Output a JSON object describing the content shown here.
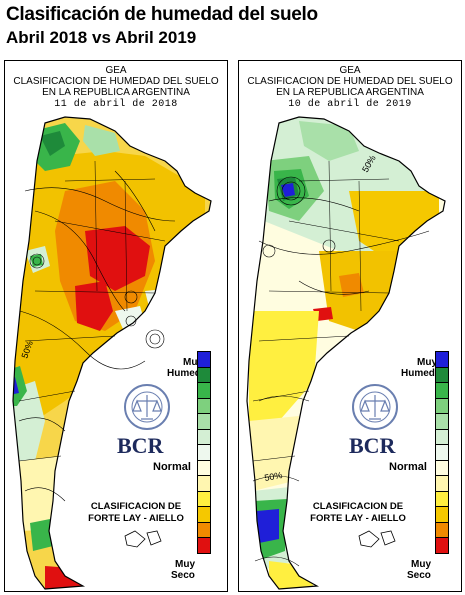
{
  "title": "Clasificación de humedad del suelo",
  "subtitle": "Abril 2018 vs Abril 2019",
  "panels": [
    {
      "org": "GEA",
      "line1": "CLASIFICACION DE HUMEDAD DEL SUELO",
      "line2": "EN LA REPUBLICA ARGENTINA",
      "date": "11 de abril de 2018",
      "contour_labels": [
        "50%"
      ]
    },
    {
      "org": "GEA",
      "line1": "CLASIFICACION DE HUMEDAD DEL SUELO",
      "line2": "EN LA REPUBLICA ARGENTINA",
      "date": "10 de abril de 2019",
      "contour_labels": [
        "50%",
        "50%"
      ]
    }
  ],
  "legend": {
    "top_label_1": "Muy",
    "top_label_2": "Humedo",
    "middle_label": "Normal",
    "bottom_label_1": "Muy",
    "bottom_label_2": "Seco",
    "colors": [
      "#1f1fd8",
      "#1e8a3a",
      "#39b54a",
      "#7ed07e",
      "#a9e0a9",
      "#d4efd4",
      "#eef8ee",
      "#fffde0",
      "#fff6b0",
      "#ffef40",
      "#f5c800",
      "#f08a00",
      "#e01010"
    ]
  },
  "logo": {
    "name": "BCR",
    "seal_text": "BOLSA DE COMERCIO DE ROSARIO"
  },
  "method": {
    "line1": "CLASIFICACION DE",
    "line2": "FORTE LAY - AIELLO"
  }
}
